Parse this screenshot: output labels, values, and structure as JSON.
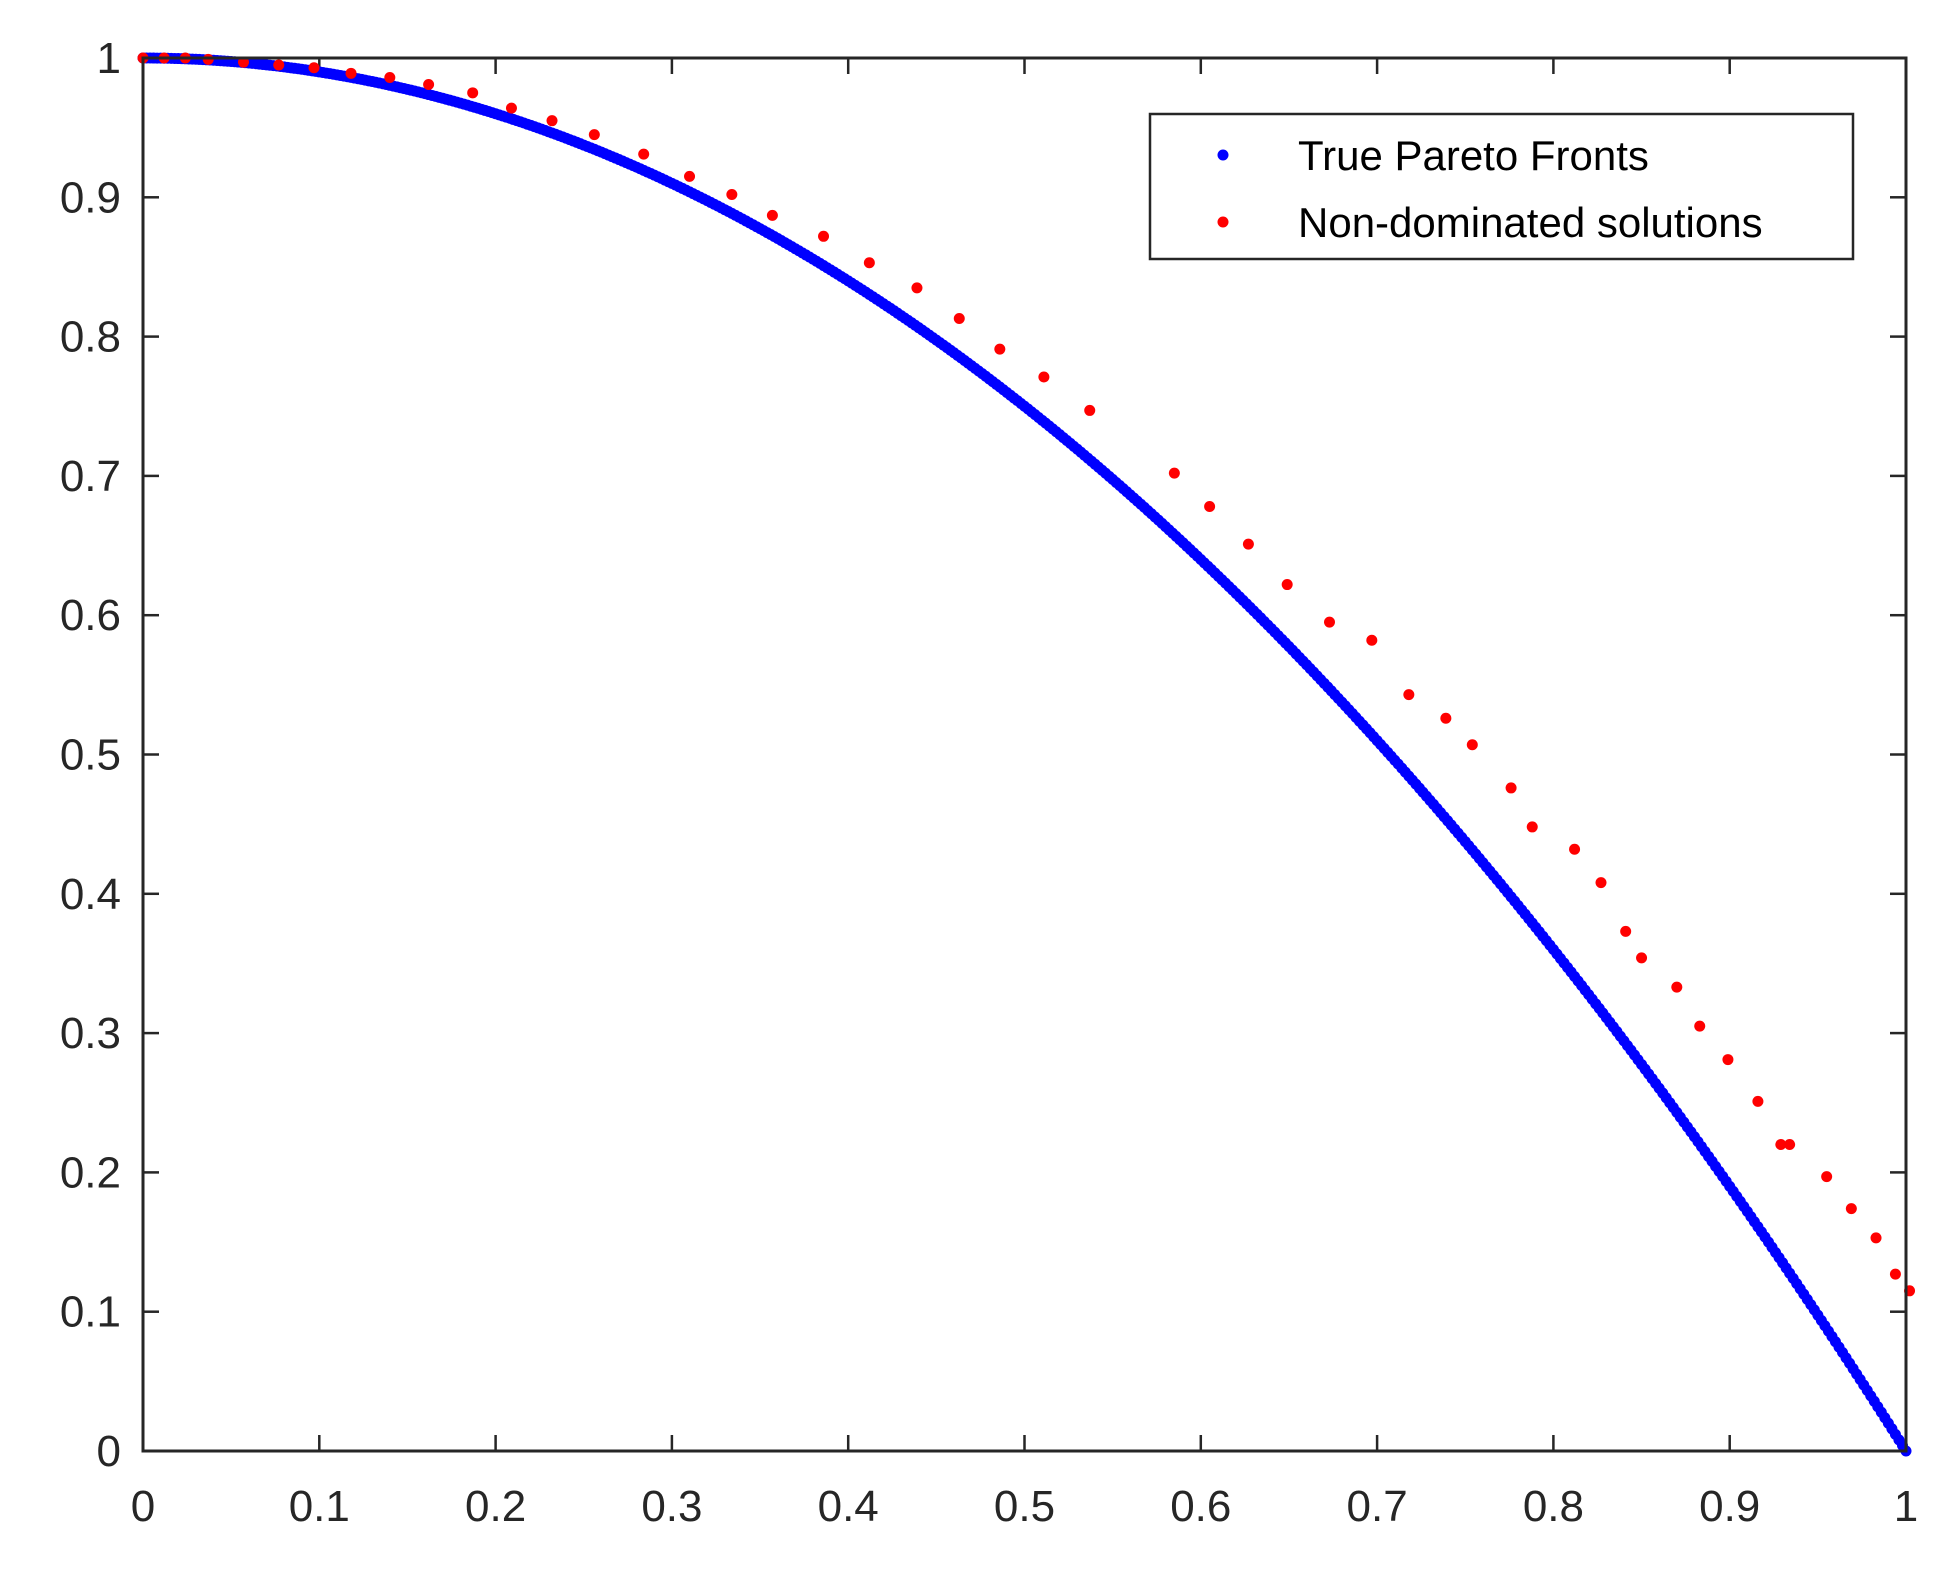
{
  "chart_data": {
    "type": "scatter",
    "title": "",
    "xlabel": "",
    "ylabel": "",
    "xlim": [
      0,
      1
    ],
    "ylim": [
      0,
      1
    ],
    "x_ticks": [
      0,
      0.1,
      0.2,
      0.3,
      0.4,
      0.5,
      0.6,
      0.7,
      0.8,
      0.9,
      1
    ],
    "y_ticks": [
      0,
      0.1,
      0.2,
      0.3,
      0.4,
      0.5,
      0.6,
      0.7,
      0.8,
      0.9,
      1
    ],
    "x_tick_labels": [
      "0",
      "0.1",
      "0.2",
      "0.3",
      "0.4",
      "0.5",
      "0.6",
      "0.7",
      "0.8",
      "0.9",
      "1"
    ],
    "y_tick_labels": [
      "0",
      "0.1",
      "0.2",
      "0.3",
      "0.4",
      "0.5",
      "0.6",
      "0.7",
      "0.8",
      "0.9",
      "1"
    ],
    "grid": false,
    "box": true,
    "legend": {
      "placement": "top-right",
      "entries": [
        "True Pareto Fronts",
        "Non-dominated solutions"
      ]
    },
    "series": [
      {
        "name": "True Pareto Fronts",
        "color": "#0000ff",
        "marker": "dense-points",
        "function": "y = 1 - x^2",
        "x_range": [
          0,
          1
        ],
        "x_step": 0.002
      },
      {
        "name": "Non-dominated solutions",
        "color": "#ff0000",
        "marker": "point",
        "points": [
          [
            0.0,
            1.0
          ],
          [
            0.012,
            1.0
          ],
          [
            0.024,
            1.0
          ],
          [
            0.037,
            0.999
          ],
          [
            0.057,
            0.997
          ],
          [
            0.077,
            0.995
          ],
          [
            0.097,
            0.993
          ],
          [
            0.118,
            0.989
          ],
          [
            0.14,
            0.986
          ],
          [
            0.162,
            0.981
          ],
          [
            0.187,
            0.975
          ],
          [
            0.209,
            0.964
          ],
          [
            0.232,
            0.955
          ],
          [
            0.256,
            0.945
          ],
          [
            0.284,
            0.931
          ],
          [
            0.31,
            0.915
          ],
          [
            0.334,
            0.902
          ],
          [
            0.357,
            0.887
          ],
          [
            0.386,
            0.872
          ],
          [
            0.412,
            0.853
          ],
          [
            0.439,
            0.835
          ],
          [
            0.463,
            0.813
          ],
          [
            0.486,
            0.791
          ],
          [
            0.511,
            0.771
          ],
          [
            0.537,
            0.747
          ],
          [
            0.585,
            0.702
          ],
          [
            0.605,
            0.678
          ],
          [
            0.627,
            0.651
          ],
          [
            0.649,
            0.622
          ],
          [
            0.673,
            0.595
          ],
          [
            0.697,
            0.582
          ],
          [
            0.718,
            0.543
          ],
          [
            0.739,
            0.526
          ],
          [
            0.754,
            0.507
          ],
          [
            0.776,
            0.476
          ],
          [
            0.788,
            0.448
          ],
          [
            0.812,
            0.432
          ],
          [
            0.827,
            0.408
          ],
          [
            0.841,
            0.373
          ],
          [
            0.85,
            0.354
          ],
          [
            0.87,
            0.333
          ],
          [
            0.883,
            0.305
          ],
          [
            0.899,
            0.281
          ],
          [
            0.916,
            0.251
          ],
          [
            0.929,
            0.22
          ],
          [
            0.934,
            0.22
          ],
          [
            0.955,
            0.197
          ],
          [
            0.969,
            0.174
          ],
          [
            0.983,
            0.153
          ],
          [
            0.994,
            0.127
          ],
          [
            1.002,
            0.115
          ]
        ]
      }
    ]
  }
}
